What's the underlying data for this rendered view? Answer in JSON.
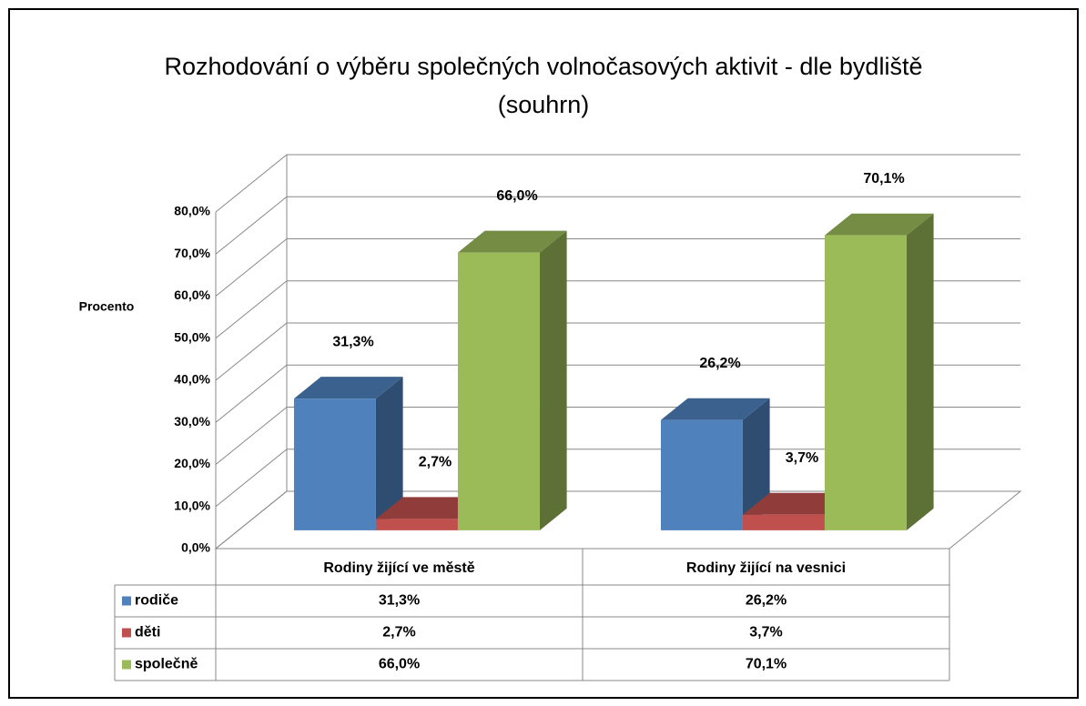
{
  "chart_data": {
    "type": "bar3d",
    "title": [
      "Rozhodování o výběru společných volnočasových aktivit - dle bydliště",
      "(souhrn)"
    ],
    "y_label": "Procento",
    "categories": [
      "Rodiny žijící ve městě",
      "Rodiny žijící na vesnici"
    ],
    "series": [
      {
        "name": "rodiče",
        "color": "#4f81bd",
        "values": [
          31.3,
          26.2
        ],
        "value_labels": [
          "31,3%",
          "26,2%"
        ]
      },
      {
        "name": "děti",
        "color": "#c0504d",
        "values": [
          2.7,
          3.7
        ],
        "value_labels": [
          "2,7%",
          "3,7%"
        ]
      },
      {
        "name": "společně",
        "color": "#9bbb59",
        "values": [
          66.0,
          70.1
        ],
        "value_labels": [
          "66,0%",
          "70,1%"
        ]
      }
    ],
    "ylim": [
      0,
      80
    ],
    "yticks": [
      {
        "value": 0,
        "label": "0,0%"
      },
      {
        "value": 10,
        "label": "10,0%"
      },
      {
        "value": 20,
        "label": "20,0%"
      },
      {
        "value": 30,
        "label": "30,0%"
      },
      {
        "value": 40,
        "label": "40,0%"
      },
      {
        "value": 50,
        "label": "50,0%"
      },
      {
        "value": 60,
        "label": "60,0%"
      },
      {
        "value": 70,
        "label": "70,0%"
      },
      {
        "value": 80,
        "label": "80,0%"
      }
    ],
    "grid": true,
    "data_table": true
  }
}
